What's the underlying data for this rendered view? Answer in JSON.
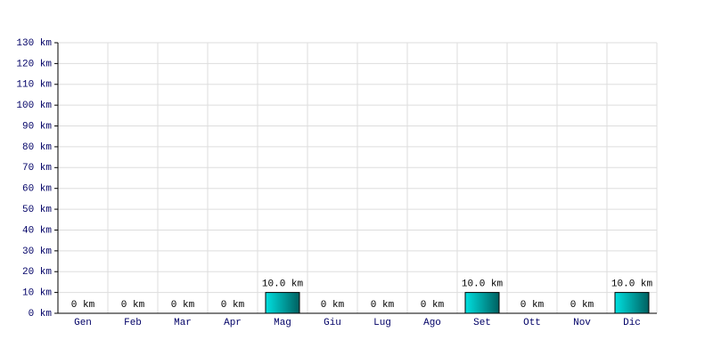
{
  "chart_data": {
    "type": "bar",
    "categories": [
      "Gen",
      "Feb",
      "Mar",
      "Apr",
      "Mag",
      "Giu",
      "Lug",
      "Ago",
      "Set",
      "Ott",
      "Nov",
      "Dic"
    ],
    "values": [
      0,
      0,
      0,
      0,
      10,
      0,
      0,
      0,
      10,
      0,
      0,
      10
    ],
    "value_labels": [
      "0 km",
      "0 km",
      "0 km",
      "0 km",
      "10.0 km",
      "0 km",
      "0 km",
      "0 km",
      "10.0 km",
      "0 km",
      "0 km",
      "10.0 km"
    ],
    "color": "#00e0e0",
    "ylim": [
      0,
      130
    ],
    "yticks": [
      {
        "value": 0,
        "label": "0 km"
      },
      {
        "value": 10,
        "label": "10 km"
      },
      {
        "value": 20,
        "label": "20 km"
      },
      {
        "value": 30,
        "label": "30 km"
      },
      {
        "value": 40,
        "label": "40 km"
      },
      {
        "value": 50,
        "label": "50 km"
      },
      {
        "value": 60,
        "label": "60 km"
      },
      {
        "value": 70,
        "label": "70 km"
      },
      {
        "value": 80,
        "label": "80 km"
      },
      {
        "value": 90,
        "label": "90 km"
      },
      {
        "value": 100,
        "label": "100 km"
      },
      {
        "value": 110,
        "label": "110 km"
      },
      {
        "value": 120,
        "label": "120 km"
      },
      {
        "value": 130,
        "label": "130 km"
      }
    ],
    "grid": true
  }
}
